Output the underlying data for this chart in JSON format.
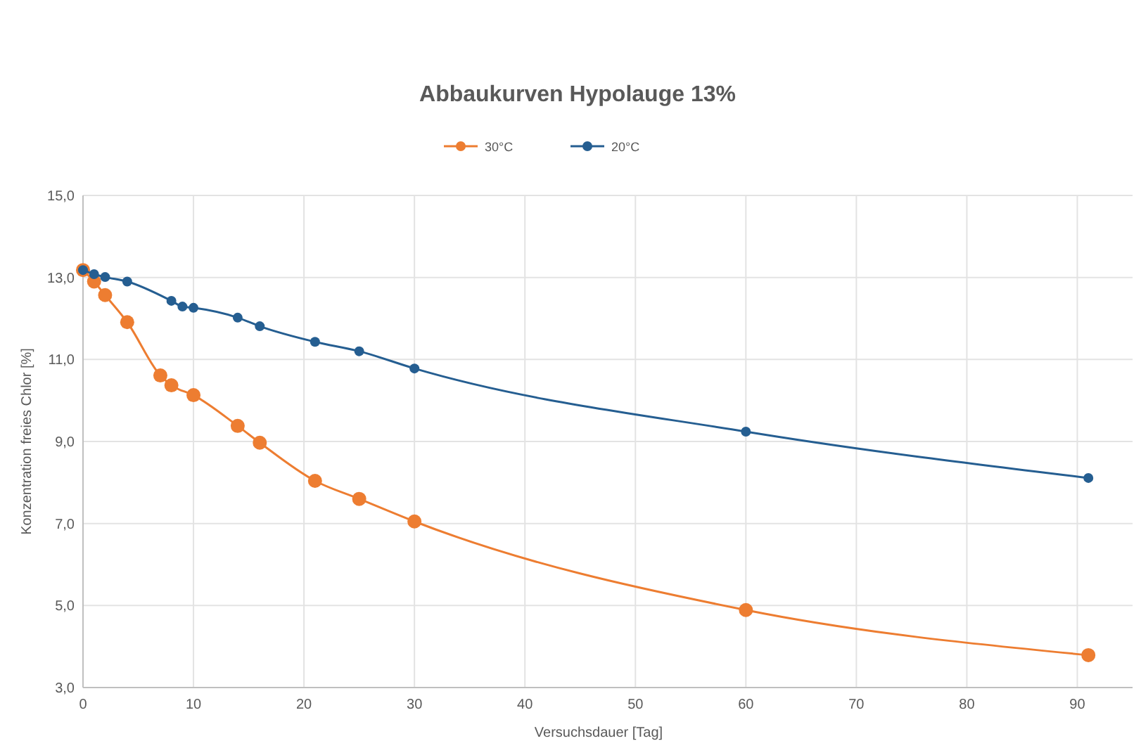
{
  "chart_data": {
    "type": "line",
    "title": "Abbaukurven Hypolauge 13%",
    "xlabel": "Versuchsdauer [Tag]",
    "ylabel": "Konzentration freies Chlor [%]",
    "series": [
      {
        "name": "30°C",
        "color": "#ed7d31",
        "x": [
          0,
          1,
          2,
          4,
          7,
          8,
          10,
          14,
          16,
          21,
          25,
          30,
          60,
          91
        ],
        "values": [
          13.18,
          12.9,
          12.57,
          11.91,
          10.61,
          10.37,
          10.13,
          9.38,
          8.97,
          8.04,
          7.6,
          7.05,
          4.89,
          3.79
        ]
      },
      {
        "name": "20°C",
        "color": "#255e91",
        "x": [
          0,
          1,
          2,
          4,
          8,
          9,
          10,
          14,
          16,
          21,
          25,
          30,
          60,
          91
        ],
        "values": [
          13.18,
          13.08,
          13.01,
          12.9,
          12.43,
          12.29,
          12.26,
          12.02,
          11.81,
          11.43,
          11.2,
          10.78,
          9.24,
          8.11
        ]
      }
    ],
    "xlim": [
      0,
      95
    ],
    "xticks": [
      0,
      10,
      20,
      30,
      40,
      50,
      60,
      70,
      80,
      90
    ],
    "ylim": [
      3,
      15
    ],
    "yticks": [
      {
        "value": 3,
        "label": "3,0"
      },
      {
        "value": 5,
        "label": "5,0"
      },
      {
        "value": 7,
        "label": "7,0"
      },
      {
        "value": 9,
        "label": "9,0"
      },
      {
        "value": 11,
        "label": "11,0"
      },
      {
        "value": 13,
        "label": "13,0"
      },
      {
        "value": 15,
        "label": "15,0"
      }
    ],
    "grid": true,
    "legend": "top",
    "marker": "circle",
    "line_style": "solid"
  }
}
